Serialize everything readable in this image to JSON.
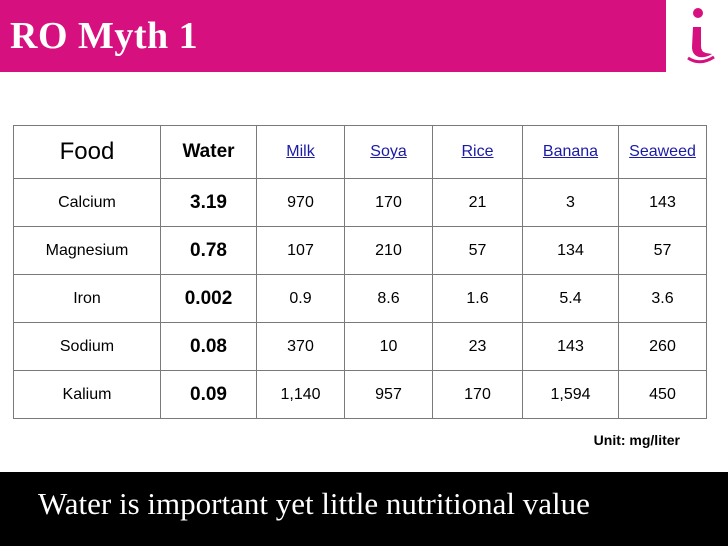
{
  "slide": {
    "title": "RO Myth 1",
    "unit_note": "Unit: mg/liter",
    "tagline": "Water is important yet little nutritional value"
  },
  "colors": {
    "header_bg": "#d6117f",
    "footer_bg": "#000000",
    "link_text": "#1a1aa6"
  },
  "table": {
    "headers": [
      "Food",
      "Water",
      "Milk",
      "Soya",
      "Rice",
      "Banana",
      "Seaweed"
    ],
    "rows": [
      [
        "Calcium",
        "3.19",
        "970",
        "170",
        "21",
        "3",
        "143"
      ],
      [
        "Magnesium",
        "0.78",
        "107",
        "210",
        "57",
        "134",
        "57"
      ],
      [
        "Iron",
        "0.002",
        "0.9",
        "8.6",
        "1.6",
        "5.4",
        "3.6"
      ],
      [
        "Sodium",
        "0.08",
        "370",
        "10",
        "23",
        "143",
        "260"
      ],
      [
        "Kalium",
        "0.09",
        "1,140",
        "957",
        "170",
        "1,594",
        "450"
      ]
    ]
  }
}
